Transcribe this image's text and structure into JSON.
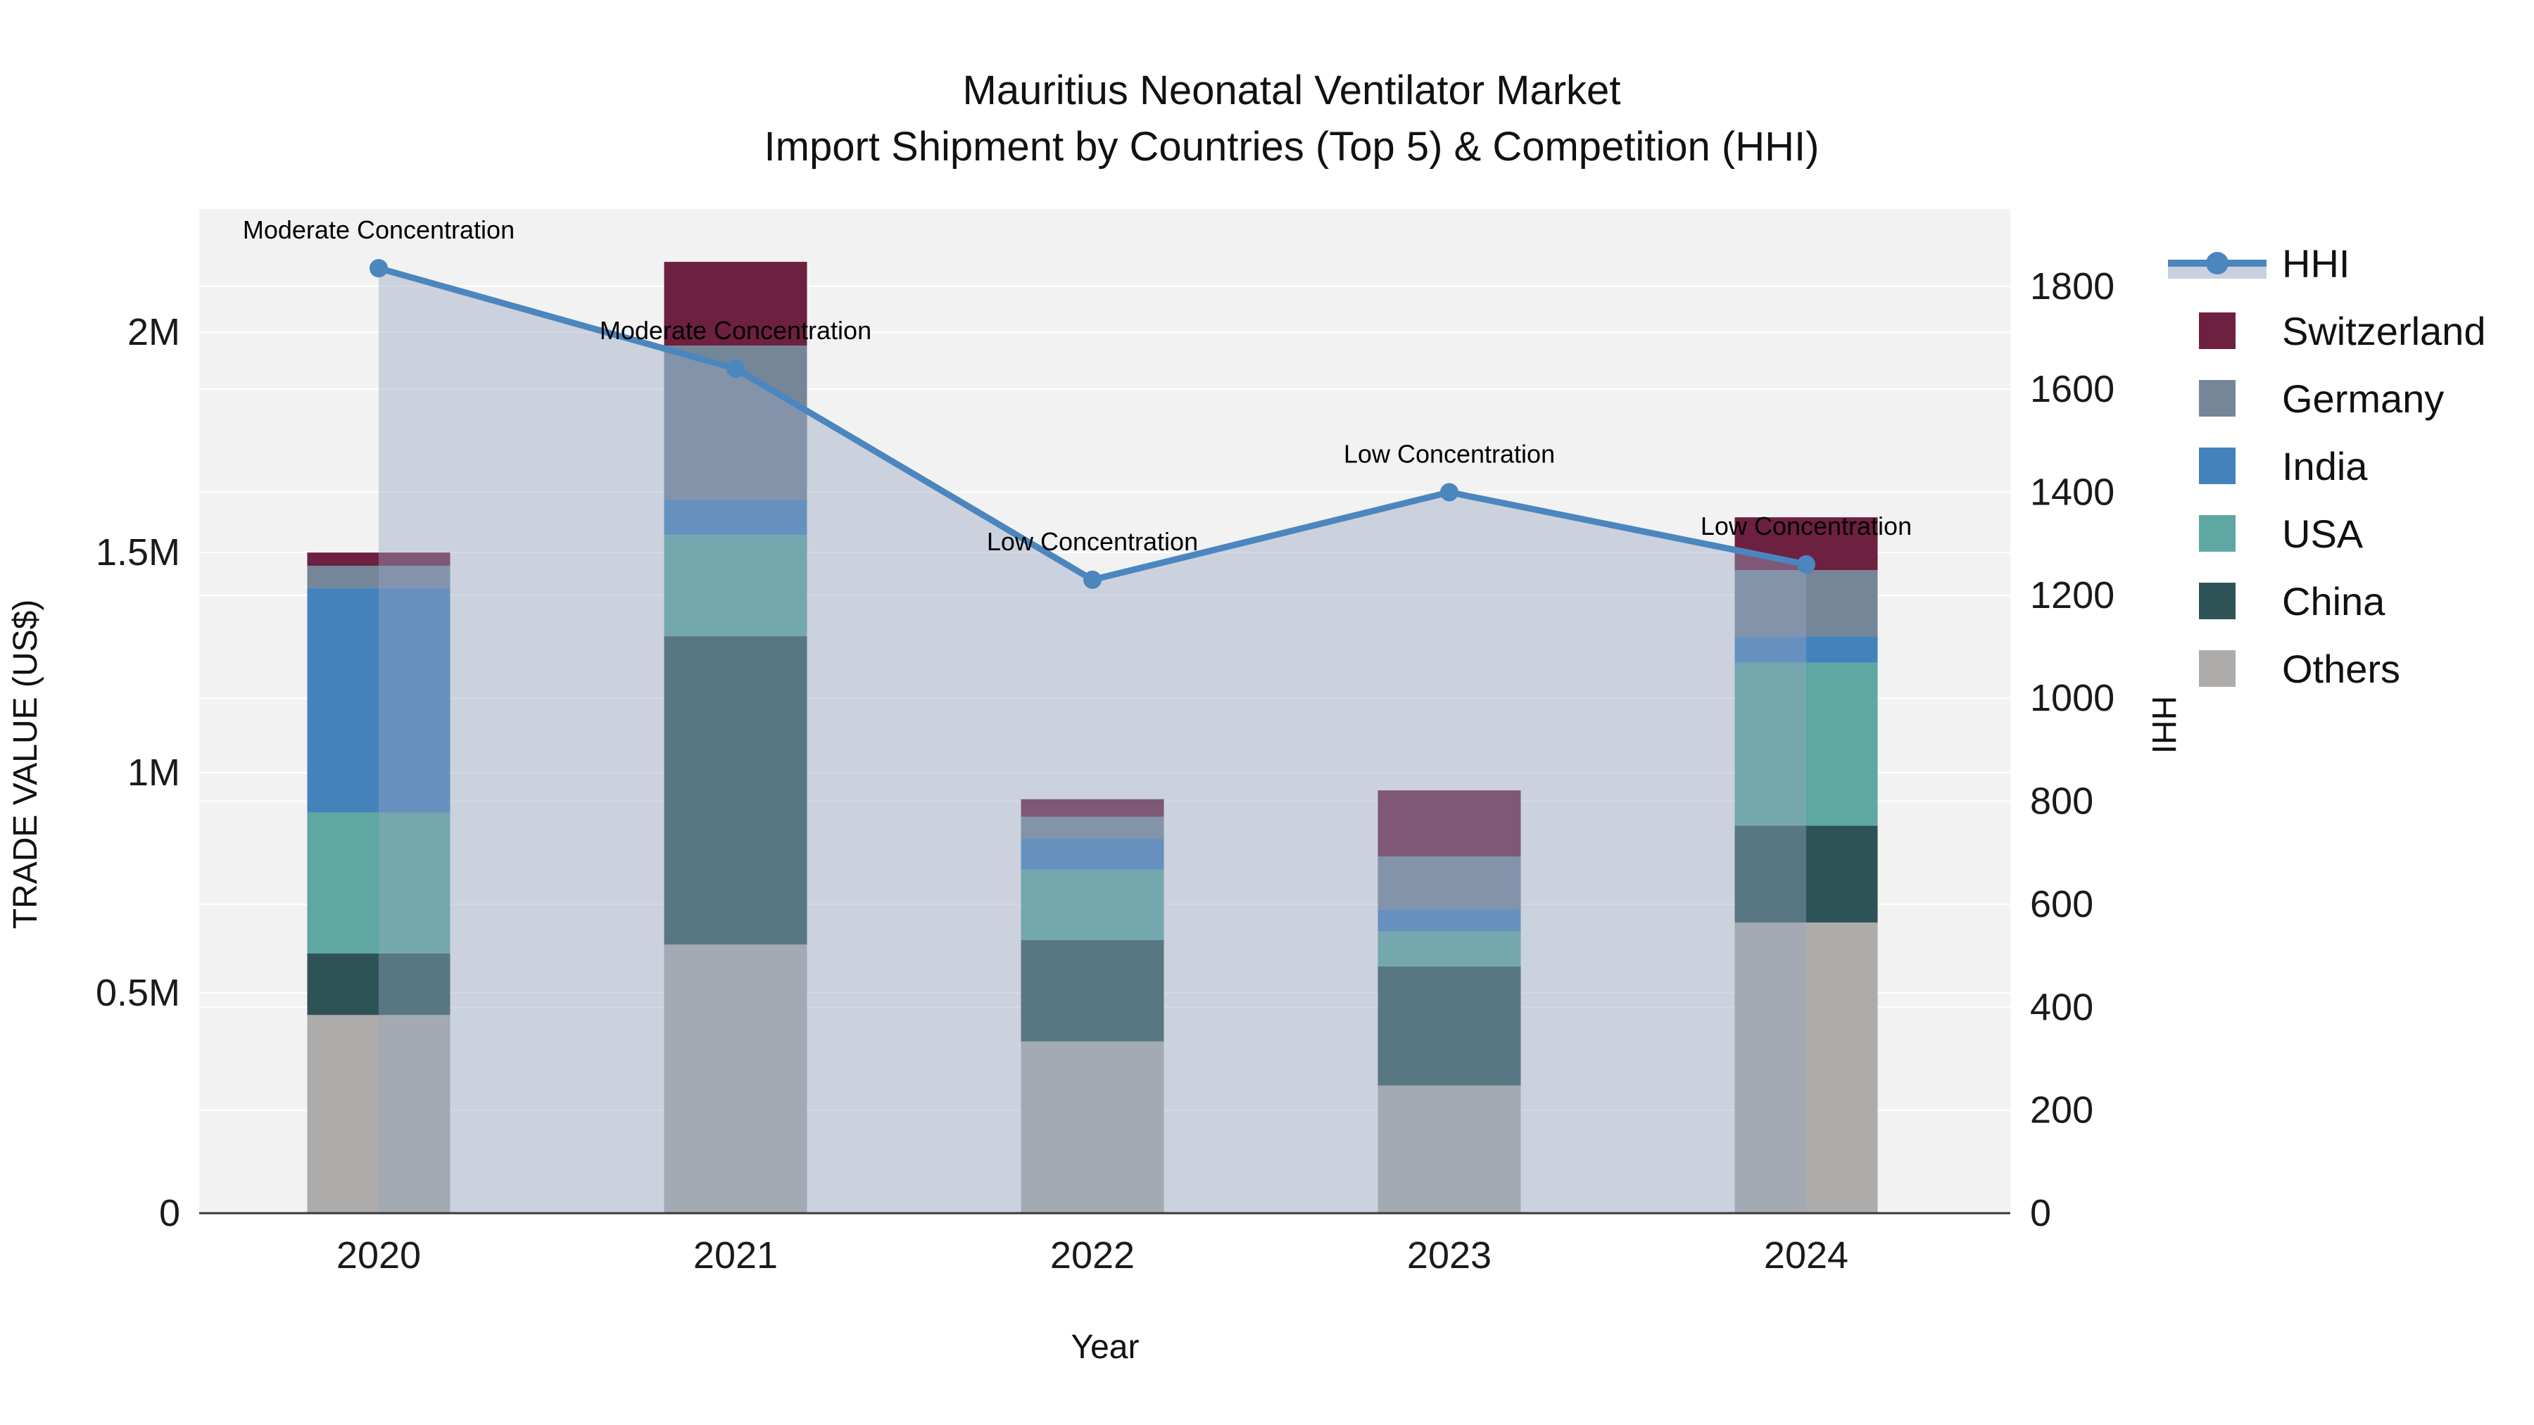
{
  "title": {
    "line1": "Mauritius Neonatal Ventilator Market",
    "line2": "Import Shipment by Countries (Top 5) & Competition (HHI)"
  },
  "axes": {
    "x_title": "Year",
    "y_left_title": "TRADE VALUE (US$)",
    "y_right_title": "HHI",
    "y_left_ticks": [
      {
        "v": 0,
        "label": "0"
      },
      {
        "v": 500000,
        "label": "0.5M"
      },
      {
        "v": 1000000,
        "label": "1M"
      },
      {
        "v": 1500000,
        "label": "1.5M"
      },
      {
        "v": 2000000,
        "label": "2M"
      }
    ],
    "y_left_max": 2280000,
    "y_right_ticks": [
      0,
      200,
      400,
      600,
      800,
      1000,
      1200,
      1400,
      1600,
      1800
    ],
    "y_right_max": 1950
  },
  "legend": {
    "items": [
      {
        "label": "HHI",
        "type": "line",
        "color": "#4b86be",
        "band": "#c9d1de"
      },
      {
        "label": "Switzerland",
        "type": "swatch",
        "color": "#6d2040"
      },
      {
        "label": "Germany",
        "type": "swatch",
        "color": "#758699"
      },
      {
        "label": "India",
        "type": "swatch",
        "color": "#4482bc"
      },
      {
        "label": "USA",
        "type": "swatch",
        "color": "#5ea7a3"
      },
      {
        "label": "China",
        "type": "swatch",
        "color": "#2e5356"
      },
      {
        "label": "Others",
        "type": "swatch",
        "color": "#adacaa"
      }
    ]
  },
  "chart_data": {
    "type": "bar+line",
    "title": "Mauritius Neonatal Ventilator Market — Import Shipment by Countries (Top 5) & Competition (HHI)",
    "categories": [
      "2020",
      "2021",
      "2022",
      "2023",
      "2024"
    ],
    "xlabel": "Year",
    "ylabel_left": "TRADE VALUE (US$)",
    "ylabel_right": "HHI",
    "ylim_left": [
      0,
      2280000
    ],
    "ylim_right": [
      0,
      1950
    ],
    "grid": true,
    "legend_position": "right",
    "stack_order_bottom_to_top": [
      "Others",
      "China",
      "USA",
      "India",
      "Germany",
      "Switzerland"
    ],
    "series": [
      {
        "name": "Others",
        "color": "#adacaa",
        "values": [
          450000,
          610000,
          390000,
          290000,
          660000
        ]
      },
      {
        "name": "China",
        "color": "#2e5356",
        "values": [
          140000,
          700000,
          230000,
          270000,
          220000
        ]
      },
      {
        "name": "USA",
        "color": "#5ea7a3",
        "values": [
          320000,
          230000,
          160000,
          80000,
          370000
        ]
      },
      {
        "name": "India",
        "color": "#4482bc",
        "values": [
          510000,
          80000,
          70000,
          50000,
          60000
        ]
      },
      {
        "name": "Germany",
        "color": "#758699",
        "values": [
          50000,
          350000,
          50000,
          120000,
          150000
        ]
      },
      {
        "name": "Switzerland",
        "color": "#6d2040",
        "values": [
          30000,
          190000,
          40000,
          150000,
          120000
        ]
      }
    ],
    "bar_totals": [
      1500000,
      2160000,
      940000,
      960000,
      1580000
    ],
    "line_series": {
      "name": "HHI",
      "color": "#4b86be",
      "area_fill": "rgba(151,166,192,0.42)",
      "values": [
        1835,
        1640,
        1230,
        1400,
        1260
      ]
    },
    "annotations": [
      "Moderate Concentration",
      "Moderate Concentration",
      "Low Concentration",
      "Low Concentration",
      "Low Concentration"
    ],
    "plot_bg": "#f2f2f2",
    "grid_color": "#ffffff",
    "axis_line_color": "#3a3a3a",
    "tick_color": "#1a1a1a"
  }
}
